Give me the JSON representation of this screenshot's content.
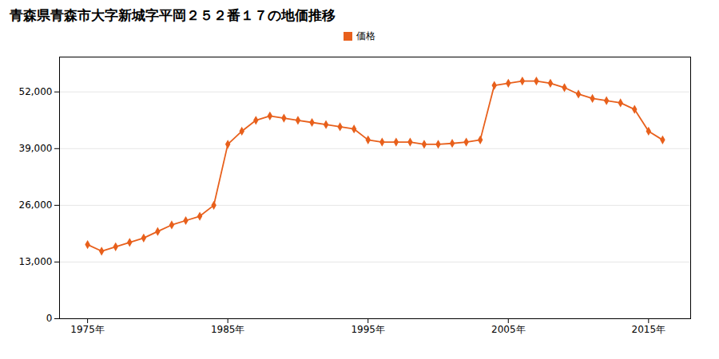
{
  "chart_data": {
    "type": "line",
    "title": "青森県青森市大字新城字平岡２５２番１７の地価推移",
    "series": [
      {
        "name": "価格",
        "color": "#e8601c",
        "marker": "diamond",
        "values": [
          17000,
          15500,
          16500,
          17500,
          18500,
          20000,
          21500,
          22500,
          23500,
          26000,
          40000,
          43000,
          45500,
          46500,
          46000,
          45500,
          45000,
          44500,
          44000,
          43500,
          41000,
          40500,
          40500,
          40500,
          40000,
          40000,
          40200,
          40500,
          41000,
          53500,
          54000,
          54500,
          54500,
          54000,
          53000,
          51500,
          50500,
          50000,
          49500,
          48000,
          43000,
          41000
        ]
      }
    ],
    "x": [
      1975,
      1976,
      1977,
      1978,
      1979,
      1980,
      1981,
      1982,
      1983,
      1984,
      1985,
      1986,
      1987,
      1988,
      1989,
      1990,
      1991,
      1992,
      1993,
      1994,
      1995,
      1996,
      1997,
      1998,
      1999,
      2000,
      2001,
      2002,
      2003,
      2004,
      2005,
      2006,
      2007,
      2008,
      2009,
      2010,
      2011,
      2012,
      2013,
      2014,
      2015,
      2016
    ],
    "xlim": [
      1973,
      2018
    ],
    "xticks": [
      {
        "value": 1975,
        "label": "1975年"
      },
      {
        "value": 1985,
        "label": "1985年"
      },
      {
        "value": 1995,
        "label": "1995年"
      },
      {
        "value": 2005,
        "label": "2005年"
      },
      {
        "value": 2015,
        "label": "2015年"
      }
    ],
    "ylim": [
      0,
      60000
    ],
    "yticks": [
      0,
      {
        "value": 13000,
        "label": "13,000"
      },
      {
        "value": 26000,
        "label": "26,000"
      },
      {
        "value": 39000,
        "label": "39,000"
      },
      {
        "value": 52000,
        "label": "52,000"
      }
    ],
    "grid": "y",
    "legend": "top"
  }
}
